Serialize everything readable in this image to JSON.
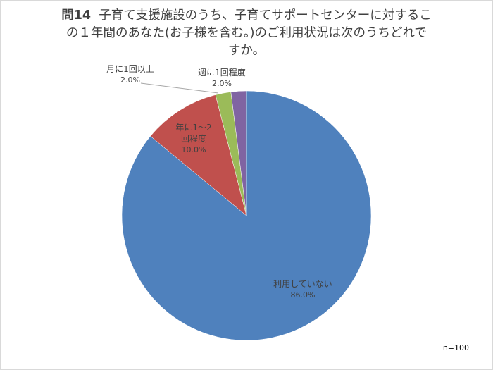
{
  "chart_data": {
    "type": "pie",
    "title": "問14　子育て支援施設のうち、子育てサポートセンターに対するこの１年間のあなた(お子様を含む。)のご利用状況は次のうちどれですか。",
    "title_prefix": "問14",
    "title_line1": "子育て支援施設のうち、子育てサポートセンターに対するこ",
    "title_line2": "の１年間のあなた(お子様を含む。)のご利用状況は次のうちどれで",
    "title_line3": "すか。",
    "start_angle": "12 o'clock, clockwise",
    "categories": [
      "利用していない",
      "年に１～２回程度",
      "月に1回以上",
      "週に1回程度"
    ],
    "values": [
      86.0,
      10.0,
      2.0,
      2.0
    ],
    "colors": [
      "#4f81bd",
      "#c0504d",
      "#9bbb59",
      "#8064a2"
    ],
    "data_labels": [
      "86.0%",
      "10.0%",
      "2.0%",
      "2.0%"
    ],
    "note": "n=100",
    "legend": "none (data labels on slices)"
  },
  "labels": {
    "not_used": {
      "name": "利用していない",
      "pct": "86.0%"
    },
    "yearly": {
      "name1": "年に1～2",
      "name2": "回程度",
      "pct": "10.0%"
    },
    "monthly": {
      "name": "月に1回以上",
      "pct": "2.0%"
    },
    "weekly": {
      "name": "週に1回程度",
      "pct": "2.0%"
    }
  }
}
